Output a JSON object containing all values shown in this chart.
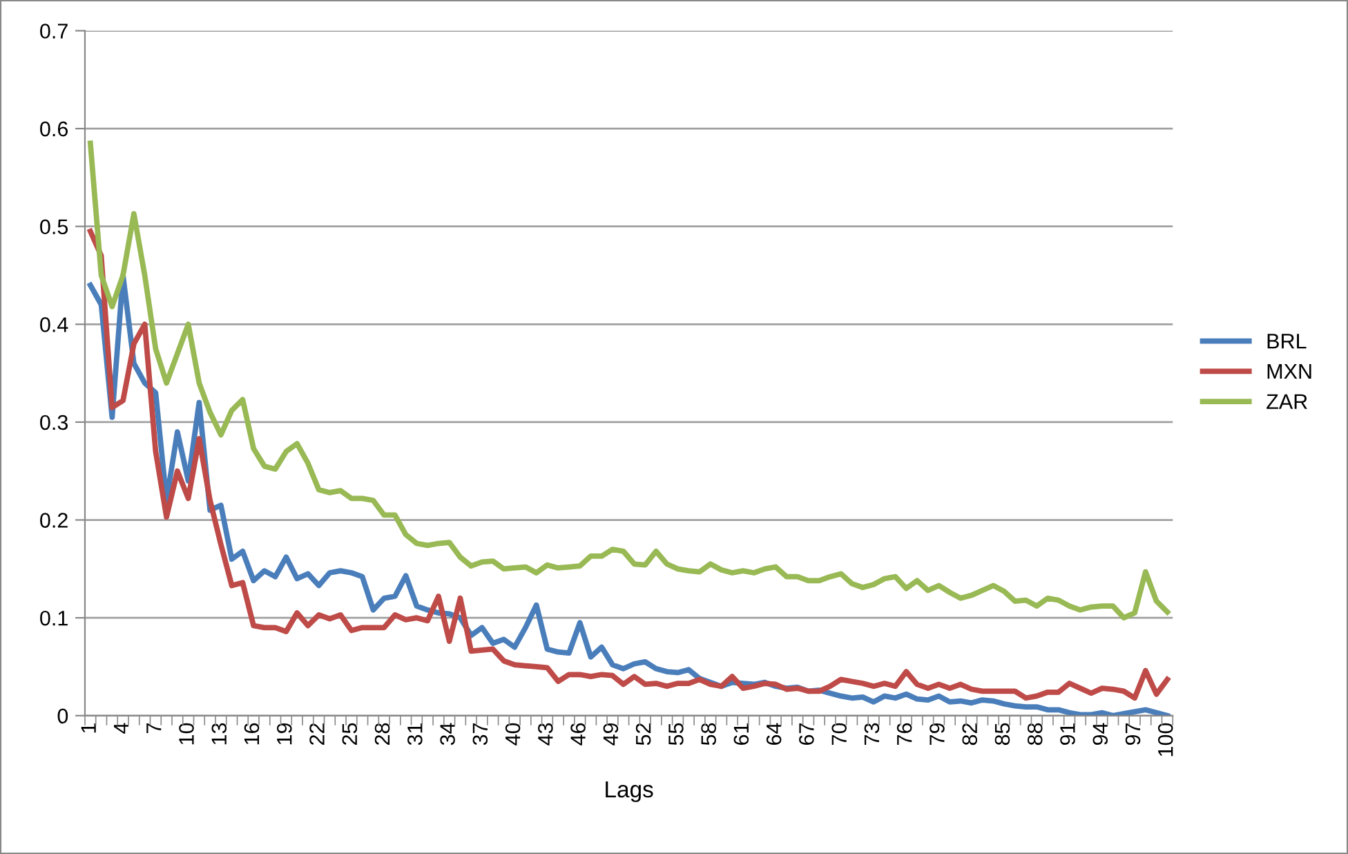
{
  "chart_data": {
    "type": "line",
    "xlabel": "Lags",
    "categories": [
      "1",
      null,
      null,
      "4",
      null,
      null,
      "7",
      null,
      null,
      "10",
      null,
      null,
      "13",
      null,
      null,
      "16",
      null,
      null,
      "19",
      null,
      null,
      "22",
      null,
      null,
      "25",
      null,
      null,
      "28",
      null,
      null,
      "31",
      null,
      null,
      "34",
      null,
      null,
      "37",
      null,
      null,
      "40",
      null,
      null,
      "43",
      null,
      null,
      "46",
      null,
      null,
      "49",
      null,
      null,
      "52",
      null,
      null,
      "55",
      null,
      null,
      "58",
      null,
      null,
      "61",
      null,
      null,
      "64",
      null,
      null,
      "67",
      null,
      null,
      "70",
      null,
      null,
      "73",
      null,
      null,
      "76",
      null,
      null,
      "79",
      null,
      null,
      "82",
      null,
      null,
      "85",
      null,
      null,
      "88",
      null,
      null,
      "91",
      null,
      null,
      "94",
      null,
      null,
      "97",
      null,
      null,
      "100"
    ],
    "series": [
      {
        "name": "BRL",
        "color": "#4a7ebb",
        "values": [
          0.44,
          0.42,
          0.305,
          0.45,
          0.36,
          0.34,
          0.33,
          0.22,
          0.29,
          0.24,
          0.32,
          0.21,
          0.215,
          0.16,
          0.168,
          0.138,
          0.148,
          0.142,
          0.162,
          0.14,
          0.145,
          0.133,
          0.146,
          0.148,
          0.146,
          0.142,
          0.108,
          0.12,
          0.122,
          0.143,
          0.112,
          0.108,
          0.105,
          0.104,
          0.1,
          0.082,
          0.09,
          0.074,
          0.078,
          0.07,
          0.09,
          0.113,
          0.068,
          0.065,
          0.064,
          0.095,
          0.06,
          0.07,
          0.052,
          0.048,
          0.053,
          0.055,
          0.048,
          0.045,
          0.044,
          0.047,
          0.038,
          0.034,
          0.03,
          0.034,
          0.033,
          0.032,
          0.034,
          0.03,
          0.028,
          0.029,
          0.025,
          0.026,
          0.023,
          0.02,
          0.018,
          0.019,
          0.014,
          0.02,
          0.018,
          0.022,
          0.017,
          0.016,
          0.02,
          0.014,
          0.015,
          0.013,
          0.016,
          0.015,
          0.012,
          0.01,
          0.009,
          0.009,
          0.006,
          0.006,
          0.003,
          0.001,
          0.001,
          0.003,
          0.0,
          0.002,
          0.004,
          0.006,
          0.003,
          0.0
        ]
      },
      {
        "name": "MXN",
        "color": "#be4b48",
        "values": [
          0.495,
          0.47,
          0.315,
          0.322,
          0.38,
          0.4,
          0.27,
          0.203,
          0.25,
          0.222,
          0.283,
          0.22,
          0.175,
          0.133,
          0.136,
          0.092,
          0.09,
          0.09,
          0.086,
          0.105,
          0.092,
          0.103,
          0.099,
          0.103,
          0.087,
          0.09,
          0.09,
          0.09,
          0.103,
          0.098,
          0.1,
          0.097,
          0.122,
          0.076,
          0.12,
          0.066,
          0.067,
          0.068,
          0.056,
          0.052,
          0.051,
          0.05,
          0.049,
          0.035,
          0.042,
          0.042,
          0.04,
          0.042,
          0.041,
          0.032,
          0.04,
          0.032,
          0.033,
          0.03,
          0.033,
          0.033,
          0.037,
          0.032,
          0.03,
          0.04,
          0.028,
          0.03,
          0.033,
          0.032,
          0.027,
          0.028,
          0.025,
          0.025,
          0.03,
          0.037,
          0.035,
          0.033,
          0.03,
          0.033,
          0.03,
          0.045,
          0.032,
          0.028,
          0.032,
          0.028,
          0.032,
          0.027,
          0.025,
          0.025,
          0.025,
          0.025,
          0.018,
          0.02,
          0.024,
          0.024,
          0.033,
          0.028,
          0.023,
          0.028,
          0.027,
          0.025,
          0.018,
          0.046,
          0.022,
          0.037
        ]
      },
      {
        "name": "ZAR",
        "color": "#98b954",
        "values": [
          0.585,
          0.45,
          0.418,
          0.45,
          0.513,
          0.45,
          0.375,
          0.34,
          0.37,
          0.4,
          0.34,
          0.31,
          0.287,
          0.312,
          0.323,
          0.273,
          0.255,
          0.252,
          0.27,
          0.278,
          0.258,
          0.231,
          0.228,
          0.23,
          0.222,
          0.222,
          0.22,
          0.205,
          0.205,
          0.185,
          0.176,
          0.174,
          0.176,
          0.177,
          0.162,
          0.153,
          0.157,
          0.158,
          0.15,
          0.151,
          0.152,
          0.146,
          0.154,
          0.151,
          0.152,
          0.153,
          0.163,
          0.163,
          0.17,
          0.168,
          0.155,
          0.154,
          0.168,
          0.155,
          0.15,
          0.148,
          0.147,
          0.155,
          0.149,
          0.146,
          0.148,
          0.146,
          0.15,
          0.152,
          0.142,
          0.142,
          0.138,
          0.138,
          0.142,
          0.145,
          0.135,
          0.131,
          0.134,
          0.14,
          0.142,
          0.13,
          0.138,
          0.128,
          0.133,
          0.126,
          0.12,
          0.123,
          0.128,
          0.133,
          0.127,
          0.117,
          0.118,
          0.112,
          0.12,
          0.118,
          0.112,
          0.108,
          0.111,
          0.112,
          0.112,
          0.1,
          0.105,
          0.147,
          0.117,
          0.106
        ]
      }
    ],
    "ylim": [
      0,
      0.7
    ],
    "yticks": [
      0,
      0.1,
      0.2,
      0.3,
      0.4,
      0.5,
      0.6,
      0.7
    ],
    "grid": "y",
    "legend": "right",
    "marker": "none",
    "line_style": "solid"
  }
}
